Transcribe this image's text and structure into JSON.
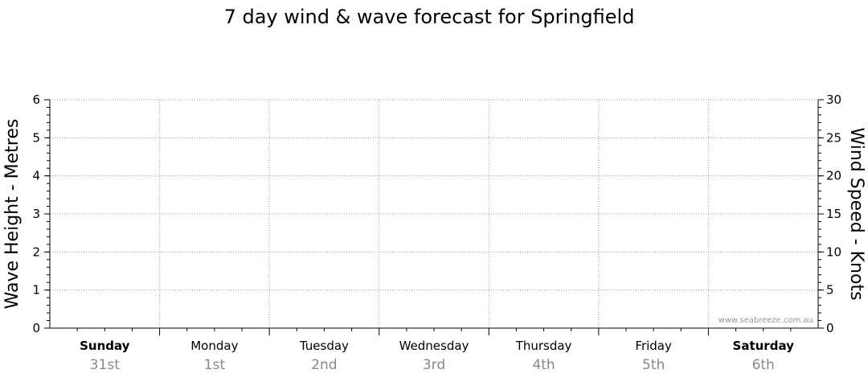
{
  "chart_data": {
    "type": "line",
    "title": "7 day wind & wave forecast for Springfield",
    "ylabel": "Wave Height - Metres",
    "y2label": "Wind Speed - Knots",
    "ylim": [
      0,
      6
    ],
    "y2lim": [
      0,
      30
    ],
    "y_ticks": [
      "0",
      "1",
      "2",
      "3",
      "4",
      "5",
      "6"
    ],
    "y2_ticks": [
      "0",
      "5",
      "10",
      "15",
      "20",
      "25",
      "30"
    ],
    "days": [
      {
        "name": "Sunday",
        "date": "31st",
        "bold": true
      },
      {
        "name": "Monday",
        "date": "1st",
        "bold": false
      },
      {
        "name": "Tuesday",
        "date": "2nd",
        "bold": false
      },
      {
        "name": "Wednesday",
        "date": "3rd",
        "bold": false
      },
      {
        "name": "Thursday",
        "date": "4th",
        "bold": false
      },
      {
        "name": "Friday",
        "date": "5th",
        "bold": false
      },
      {
        "name": "Saturday",
        "date": "6th",
        "bold": true
      }
    ],
    "series": [],
    "grid": true,
    "watermark": "www.seabreeze.com.au"
  }
}
